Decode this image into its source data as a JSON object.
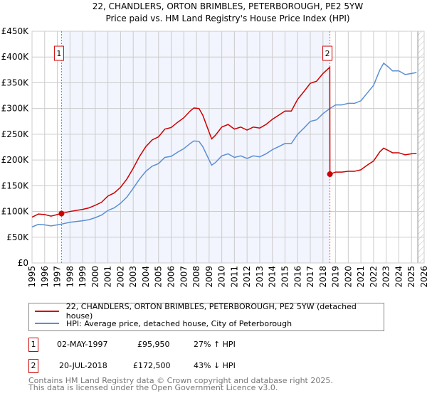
{
  "chart_data": {
    "type": "line",
    "title": "22, CHANDLERS, ORTON BRIMBLES, PETERBOROUGH, PE2 5YW",
    "subtitle": "Price paid vs. HM Land Registry's House Price Index (HPI)",
    "xlim": [
      1995,
      2026
    ],
    "ylim": [
      0,
      450000
    ],
    "x_ticks": [
      "1995",
      "1996",
      "1997",
      "1998",
      "1999",
      "2000",
      "2001",
      "2002",
      "2003",
      "2004",
      "2005",
      "2006",
      "2007",
      "2008",
      "2009",
      "2010",
      "2011",
      "2012",
      "2013",
      "2014",
      "2015",
      "2016",
      "2017",
      "2018",
      "2019",
      "2020",
      "2021",
      "2022",
      "2023",
      "2024",
      "2025",
      "2026"
    ],
    "y_ticks": [
      {
        "v": 0,
        "label": "£0"
      },
      {
        "v": 50000,
        "label": "£50K"
      },
      {
        "v": 100000,
        "label": "£100K"
      },
      {
        "v": 150000,
        "label": "£150K"
      },
      {
        "v": 200000,
        "label": "£200K"
      },
      {
        "v": 250000,
        "label": "£250K"
      },
      {
        "v": 300000,
        "label": "£300K"
      },
      {
        "v": 350000,
        "label": "£350K"
      },
      {
        "v": 400000,
        "label": "£400K"
      },
      {
        "v": 450000,
        "label": "£450K"
      }
    ],
    "grid": true,
    "series": [
      {
        "name": "22, CHANDLERS, ORTON BRIMBLES, PETERBOROUGH, PE2 5YW (detached house)",
        "color": "#cc0000",
        "x": [
          1995,
          1995.5,
          1996,
          1996.5,
          1997,
          1997.33,
          1998,
          1999,
          1999.5,
          2000,
          2000.5,
          2001,
          2001.5,
          2002,
          2002.5,
          2003,
          2003.5,
          2004,
          2004.5,
          2005,
          2005.5,
          2006,
          2006.5,
          2007,
          2007.5,
          2007.8,
          2008.2,
          2008.5,
          2009,
          2009.2,
          2009.5,
          2010,
          2010.5,
          2011,
          2011.5,
          2012,
          2012.5,
          2013,
          2013.5,
          2014,
          2014.5,
          2015,
          2015.5,
          2016,
          2016.5,
          2017,
          2017.5,
          2018,
          2018.54,
          2018.55,
          2019,
          2019.5,
          2020,
          2020.5,
          2021,
          2021.5,
          2022,
          2022.5,
          2022.8,
          2023.2,
          2023.5,
          2024,
          2024.5,
          2025,
          2025.4
        ],
        "y": [
          89,
          95,
          94,
          91,
          94,
          96,
          100,
          104,
          107,
          112,
          118,
          130,
          136,
          147,
          163,
          184,
          207,
          226,
          239,
          245,
          260,
          263,
          273,
          282,
          295,
          301,
          300,
          287,
          254,
          241,
          248,
          264,
          269,
          260,
          264,
          258,
          264,
          262,
          269,
          279,
          287,
          295,
          295,
          318,
          333,
          349,
          353,
          368,
          380,
          172.5,
          176.5,
          176.5,
          178,
          178,
          181,
          190,
          198,
          216,
          223,
          218,
          214,
          214,
          210,
          212,
          213
        ]
      },
      {
        "name": "HPI: Average price, detached house, City of Peterborough",
        "color": "#5b8fd4",
        "x": [
          1995,
          1995.5,
          1996,
          1996.5,
          1997,
          1997.33,
          1998,
          1999,
          1999.5,
          2000,
          2000.5,
          2001,
          2001.5,
          2002,
          2002.5,
          2003,
          2003.5,
          2004,
          2004.5,
          2005,
          2005.5,
          2006,
          2006.5,
          2007,
          2007.5,
          2007.8,
          2008.2,
          2008.5,
          2009,
          2009.2,
          2009.5,
          2010,
          2010.5,
          2011,
          2011.5,
          2012,
          2012.5,
          2013,
          2013.5,
          2014,
          2014.5,
          2015,
          2015.5,
          2016,
          2016.5,
          2017,
          2017.5,
          2018,
          2018.55,
          2019,
          2019.5,
          2020,
          2020.5,
          2021,
          2021.5,
          2022,
          2022.5,
          2022.8,
          2023.2,
          2023.5,
          2024,
          2024.5,
          2025,
          2025.4
        ],
        "y": [
          70,
          75,
          74,
          72,
          74,
          75.5,
          79,
          82,
          84,
          88,
          93,
          102,
          107,
          116,
          128,
          145,
          163,
          178,
          188,
          193,
          205,
          207,
          215,
          222,
          232,
          237,
          236,
          226,
          200,
          190,
          195,
          208,
          212,
          205,
          208,
          203,
          208,
          206,
          212,
          220,
          226,
          232,
          232,
          250,
          262,
          275,
          278,
          290,
          300,
          307,
          307,
          310,
          310,
          315,
          330,
          345,
          375,
          388,
          380,
          373,
          373,
          366,
          368,
          370
        ]
      }
    ],
    "y_units": "thousands GBP",
    "annotations": [
      {
        "label": "1",
        "x": 1997.33,
        "y": 95.95
      },
      {
        "label": "2",
        "x": 2018.55,
        "y": 172.5
      }
    ],
    "shaded_range": [
      1997.33,
      2018.55
    ],
    "hatched_from": 2025.5,
    "legend_placement": "below"
  },
  "sales": [
    {
      "num": "1",
      "date": "02-MAY-1997",
      "price": "£95,950",
      "hpi": "27% ↑ HPI"
    },
    {
      "num": "2",
      "date": "20-JUL-2018",
      "price": "£172,500",
      "hpi": "43% ↓ HPI"
    }
  ],
  "footer": {
    "line1": "Contains HM Land Registry data © Crown copyright and database right 2025.",
    "line2": "This data is licensed under the Open Government Licence v3.0."
  }
}
